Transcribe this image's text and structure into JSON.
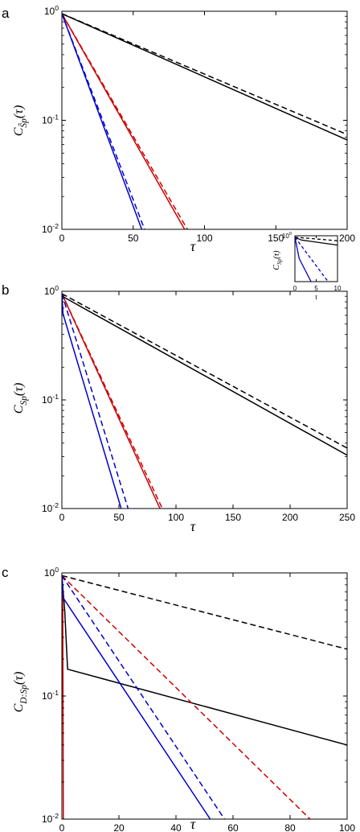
{
  "chart_data": [
    {
      "panel_label": "a",
      "type": "line",
      "xlabel": "τ",
      "ylabel": "C_{Ŝ_p}(τ)",
      "xlim": [
        0,
        200
      ],
      "ylim": [
        0.01,
        1
      ],
      "yscale": "log",
      "xticks": [
        "0",
        "50",
        "100",
        "150",
        "200"
      ],
      "yticks": [
        "10^0",
        "10^-1",
        "10^-2"
      ],
      "series": [
        {
          "color": "#000000",
          "dash": "solid",
          "x": [
            0,
            200
          ],
          "y": [
            0.95,
            0.066
          ]
        },
        {
          "color": "#000000",
          "dash": "dashed",
          "x": [
            0,
            200
          ],
          "y": [
            0.95,
            0.074
          ]
        },
        {
          "color": "#cc0000",
          "dash": "solid",
          "x": [
            0,
            86
          ],
          "y": [
            0.95,
            0.01
          ]
        },
        {
          "color": "#cc0000",
          "dash": "dashed",
          "x": [
            0,
            88
          ],
          "y": [
            0.95,
            0.01
          ]
        },
        {
          "color": "#0000cc",
          "dash": "solid",
          "x": [
            0,
            56
          ],
          "y": [
            0.95,
            0.01
          ]
        },
        {
          "color": "#0000cc",
          "dash": "dashed",
          "x": [
            0,
            58
          ],
          "y": [
            0.95,
            0.01
          ]
        }
      ]
    },
    {
      "panel_label": "b",
      "type": "line",
      "xlabel": "τ",
      "ylabel": "C_{S_p}(τ)",
      "xlim": [
        0,
        250
      ],
      "ylim": [
        0.01,
        1
      ],
      "yscale": "log",
      "xticks": [
        "0",
        "50",
        "100",
        "150",
        "200",
        "250"
      ],
      "yticks": [
        "10^0",
        "10^-1",
        "10^-2"
      ],
      "series": [
        {
          "color": "#000000",
          "dash": "solid",
          "x": [
            0,
            2,
            250
          ],
          "y": [
            0.95,
            0.88,
            0.031
          ]
        },
        {
          "color": "#000000",
          "dash": "dashed",
          "x": [
            0,
            250
          ],
          "y": [
            0.95,
            0.036
          ]
        },
        {
          "color": "#cc0000",
          "dash": "solid",
          "x": [
            0,
            86
          ],
          "y": [
            0.95,
            0.01
          ]
        },
        {
          "color": "#cc0000",
          "dash": "dashed",
          "x": [
            0,
            88
          ],
          "y": [
            0.95,
            0.01
          ]
        },
        {
          "color": "#0000cc",
          "dash": "solid",
          "x": [
            0,
            1,
            52
          ],
          "y": [
            0.95,
            0.62,
            0.01
          ]
        },
        {
          "color": "#0000cc",
          "dash": "dashed",
          "x": [
            0,
            58
          ],
          "y": [
            0.95,
            0.01
          ]
        }
      ],
      "inset": {
        "xlabel": "τ",
        "ylabel": "C_{S_p}(τ)",
        "xlim": [
          0,
          10
        ],
        "ylim": [
          0.2,
          1
        ],
        "yscale": "log",
        "xticks": [
          "0",
          "5",
          "10"
        ],
        "yticks": [
          "10^0"
        ],
        "series": [
          {
            "color": "#000000",
            "dash": "solid",
            "x": [
              0,
              1.5,
              10
            ],
            "y": [
              0.95,
              0.86,
              0.72
            ]
          },
          {
            "color": "#000000",
            "dash": "dashed",
            "x": [
              0,
              10
            ],
            "y": [
              0.95,
              0.84
            ]
          },
          {
            "color": "#0000cc",
            "dash": "solid",
            "x": [
              0,
              1,
              3.8
            ],
            "y": [
              0.95,
              0.45,
              0.2
            ]
          },
          {
            "color": "#0000cc",
            "dash": "dashed",
            "x": [
              0,
              7.8
            ],
            "y": [
              0.95,
              0.2
            ]
          }
        ]
      }
    },
    {
      "panel_label": "c",
      "type": "line",
      "xlabel": "τ",
      "ylabel": "C_{D:S_p}(τ)",
      "xlim": [
        0,
        100
      ],
      "ylim": [
        0.01,
        1
      ],
      "yscale": "log",
      "xticks": [
        "0",
        "20",
        "40",
        "60",
        "80",
        "100"
      ],
      "yticks": [
        "10^0",
        "10^-1",
        "10^-2"
      ],
      "series": [
        {
          "color": "#000000",
          "dash": "solid",
          "x": [
            0,
            1,
            2,
            100
          ],
          "y": [
            0.95,
            0.5,
            0.165,
            0.04
          ]
        },
        {
          "color": "#000000",
          "dash": "dashed",
          "x": [
            0,
            100
          ],
          "y": [
            0.95,
            0.24
          ]
        },
        {
          "color": "#cc0000",
          "dash": "solid",
          "x": [
            0,
            0.3,
            0.5
          ],
          "y": [
            0.95,
            0.5,
            0.01
          ]
        },
        {
          "color": "#cc0000",
          "dash": "dashed",
          "x": [
            0,
            87
          ],
          "y": [
            0.95,
            0.01
          ]
        },
        {
          "color": "#0000cc",
          "dash": "solid",
          "x": [
            0,
            0.6,
            52
          ],
          "y": [
            0.95,
            0.62,
            0.01
          ]
        },
        {
          "color": "#0000cc",
          "dash": "dashed",
          "x": [
            0,
            57
          ],
          "y": [
            0.95,
            0.01
          ]
        }
      ]
    }
  ]
}
